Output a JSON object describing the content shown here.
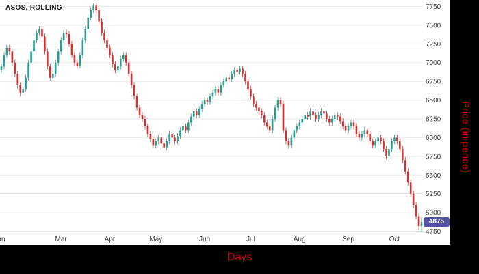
{
  "title": {
    "annotation": "ASOS, ROLLING"
  },
  "axes": {
    "x_label": "Days",
    "y_label": "Price (in pence)",
    "label_color": "#cc0000",
    "tick_color": "#444444",
    "grid_color": "#e8e8e8"
  },
  "price_badge": {
    "value": "4875",
    "color": "#5352a3"
  },
  "chart_data": {
    "type": "candlestick",
    "title": "ASOS, ROLLING",
    "xlabel": "Days",
    "ylabel": "Price (in pence)",
    "ylim": [
      4700,
      7800
    ],
    "y_ticks": [
      4750,
      5000,
      5250,
      5500,
      5750,
      6000,
      6250,
      6500,
      6750,
      7000,
      7250,
      7500,
      7750
    ],
    "x_ticks": [
      {
        "label": "an",
        "index": 0
      },
      {
        "label": "Mar",
        "index": 22
      },
      {
        "label": "Apr",
        "index": 40
      },
      {
        "label": "May",
        "index": 57
      },
      {
        "label": "Jun",
        "index": 75
      },
      {
        "label": "Jul",
        "index": 92
      },
      {
        "label": "Aug",
        "index": 110
      },
      {
        "label": "Sep",
        "index": 128
      },
      {
        "label": "Oct",
        "index": 145
      }
    ],
    "colors": {
      "up": "#2a9d8f",
      "down": "#d62f2f"
    },
    "last_price": 4875,
    "candles": [
      [
        6900,
        6990,
        6860,
        6950
      ],
      [
        6950,
        7140,
        6910,
        7100
      ],
      [
        7100,
        7240,
        7060,
        7200
      ],
      [
        7200,
        7240,
        7110,
        7150
      ],
      [
        7150,
        7190,
        6960,
        7000
      ],
      [
        7000,
        7040,
        6810,
        6850
      ],
      [
        6850,
        6890,
        6660,
        6700
      ],
      [
        6700,
        6740,
        6550,
        6600
      ],
      [
        6600,
        6690,
        6560,
        6650
      ],
      [
        6650,
        6840,
        6610,
        6800
      ],
      [
        6800,
        7040,
        6760,
        7000
      ],
      [
        7000,
        7190,
        6960,
        7150
      ],
      [
        7150,
        7340,
        7110,
        7300
      ],
      [
        7300,
        7440,
        7260,
        7400
      ],
      [
        7400,
        7490,
        7360,
        7450
      ],
      [
        7450,
        7490,
        7310,
        7350
      ],
      [
        7350,
        7390,
        7110,
        7150
      ],
      [
        7150,
        7190,
        6910,
        6950
      ],
      [
        6950,
        6990,
        6760,
        6800
      ],
      [
        6800,
        6890,
        6760,
        6850
      ],
      [
        6850,
        7040,
        6810,
        7000
      ],
      [
        7000,
        7190,
        6960,
        7150
      ],
      [
        7150,
        7340,
        7110,
        7300
      ],
      [
        7300,
        7440,
        7260,
        7400
      ],
      [
        7400,
        7440,
        7340,
        7380
      ],
      [
        7380,
        7420,
        7210,
        7250
      ],
      [
        7250,
        7290,
        7060,
        7100
      ],
      [
        7100,
        7140,
        6960,
        7000
      ],
      [
        7000,
        7040,
        6920,
        6960
      ],
      [
        6960,
        7140,
        6920,
        7100
      ],
      [
        7100,
        7340,
        7060,
        7300
      ],
      [
        7300,
        7490,
        7260,
        7450
      ],
      [
        7450,
        7640,
        7410,
        7600
      ],
      [
        7600,
        7740,
        7560,
        7700
      ],
      [
        7700,
        7790,
        7660,
        7760
      ],
      [
        7760,
        7790,
        7660,
        7700
      ],
      [
        7700,
        7740,
        7510,
        7550
      ],
      [
        7550,
        7590,
        7360,
        7400
      ],
      [
        7400,
        7440,
        7260,
        7300
      ],
      [
        7300,
        7340,
        7160,
        7200
      ],
      [
        7200,
        7240,
        7060,
        7100
      ],
      [
        7100,
        7140,
        6940,
        6980
      ],
      [
        6980,
        7020,
        6860,
        6900
      ],
      [
        6900,
        6990,
        6860,
        6950
      ],
      [
        6950,
        7090,
        6910,
        7050
      ],
      [
        7050,
        7140,
        7010,
        7100
      ],
      [
        7100,
        7140,
        6960,
        7000
      ],
      [
        7000,
        7040,
        6810,
        6850
      ],
      [
        6850,
        6890,
        6660,
        6700
      ],
      [
        6700,
        6740,
        6510,
        6550
      ],
      [
        6550,
        6590,
        6360,
        6400
      ],
      [
        6400,
        6440,
        6260,
        6300
      ],
      [
        6300,
        6340,
        6210,
        6250
      ],
      [
        6250,
        6290,
        6110,
        6150
      ],
      [
        6150,
        6190,
        6010,
        6050
      ],
      [
        6050,
        6090,
        5940,
        5980
      ],
      [
        5980,
        6020,
        5860,
        5900
      ],
      [
        5900,
        5990,
        5860,
        5950
      ],
      [
        5950,
        6040,
        5910,
        6000
      ],
      [
        6000,
        6040,
        5880,
        5920
      ],
      [
        5920,
        5960,
        5830,
        5870
      ],
      [
        5870,
        5990,
        5830,
        5950
      ],
      [
        5950,
        6090,
        5910,
        6050
      ],
      [
        6050,
        6090,
        5960,
        6000
      ],
      [
        6000,
        6040,
        5910,
        5950
      ],
      [
        5950,
        6060,
        5910,
        6020
      ],
      [
        6020,
        6140,
        5980,
        6100
      ],
      [
        6100,
        6190,
        6060,
        6150
      ],
      [
        6150,
        6190,
        6060,
        6100
      ],
      [
        6100,
        6240,
        6060,
        6200
      ],
      [
        6200,
        6320,
        6160,
        6280
      ],
      [
        6280,
        6390,
        6240,
        6350
      ],
      [
        6350,
        6390,
        6260,
        6300
      ],
      [
        6300,
        6420,
        6260,
        6380
      ],
      [
        6380,
        6490,
        6340,
        6450
      ],
      [
        6450,
        6540,
        6410,
        6500
      ],
      [
        6500,
        6540,
        6440,
        6480
      ],
      [
        6480,
        6590,
        6440,
        6550
      ],
      [
        6550,
        6640,
        6510,
        6600
      ],
      [
        6600,
        6690,
        6560,
        6650
      ],
      [
        6650,
        6690,
        6560,
        6600
      ],
      [
        6600,
        6740,
        6560,
        6700
      ],
      [
        6700,
        6790,
        6660,
        6750
      ],
      [
        6750,
        6840,
        6710,
        6800
      ],
      [
        6800,
        6840,
        6740,
        6780
      ],
      [
        6780,
        6890,
        6740,
        6850
      ],
      [
        6850,
        6940,
        6810,
        6900
      ],
      [
        6900,
        6940,
        6840,
        6880
      ],
      [
        6880,
        6960,
        6840,
        6920
      ],
      [
        6920,
        6960,
        6810,
        6850
      ],
      [
        6850,
        6890,
        6710,
        6750
      ],
      [
        6750,
        6790,
        6610,
        6650
      ],
      [
        6650,
        6690,
        6510,
        6550
      ],
      [
        6550,
        6590,
        6410,
        6450
      ],
      [
        6450,
        6490,
        6360,
        6400
      ],
      [
        6400,
        6440,
        6310,
        6350
      ],
      [
        6350,
        6390,
        6260,
        6300
      ],
      [
        6300,
        6340,
        6160,
        6200
      ],
      [
        6200,
        6240,
        6110,
        6150
      ],
      [
        6150,
        6190,
        6060,
        6100
      ],
      [
        6100,
        6290,
        6060,
        6250
      ],
      [
        6250,
        6440,
        6210,
        6400
      ],
      [
        6400,
        6540,
        6360,
        6500
      ],
      [
        6500,
        6540,
        6410,
        6450
      ],
      [
        6450,
        6490,
        6060,
        6100
      ],
      [
        6100,
        6140,
        5910,
        5950
      ],
      [
        5950,
        5990,
        5850,
        5900
      ],
      [
        5900,
        6040,
        5860,
        6000
      ],
      [
        6000,
        6140,
        5960,
        6100
      ],
      [
        6100,
        6190,
        6060,
        6150
      ],
      [
        6150,
        6240,
        6110,
        6200
      ],
      [
        6200,
        6290,
        6160,
        6250
      ],
      [
        6250,
        6340,
        6210,
        6300
      ],
      [
        6300,
        6340,
        6240,
        6280
      ],
      [
        6280,
        6390,
        6240,
        6350
      ],
      [
        6350,
        6390,
        6260,
        6300
      ],
      [
        6300,
        6340,
        6210,
        6250
      ],
      [
        6250,
        6340,
        6210,
        6300
      ],
      [
        6300,
        6390,
        6260,
        6350
      ],
      [
        6350,
        6390,
        6280,
        6320
      ],
      [
        6320,
        6360,
        6210,
        6250
      ],
      [
        6250,
        6290,
        6160,
        6200
      ],
      [
        6200,
        6290,
        6160,
        6250
      ],
      [
        6250,
        6340,
        6210,
        6300
      ],
      [
        6300,
        6340,
        6240,
        6280
      ],
      [
        6280,
        6320,
        6180,
        6220
      ],
      [
        6220,
        6260,
        6110,
        6150
      ],
      [
        6150,
        6190,
        6060,
        6100
      ],
      [
        6100,
        6190,
        6060,
        6150
      ],
      [
        6150,
        6240,
        6110,
        6200
      ],
      [
        6200,
        6240,
        6110,
        6150
      ],
      [
        6150,
        6190,
        6010,
        6050
      ],
      [
        6050,
        6090,
        5960,
        6000
      ],
      [
        6000,
        6090,
        5960,
        6050
      ],
      [
        6050,
        6140,
        6010,
        6100
      ],
      [
        6100,
        6140,
        6010,
        6050
      ],
      [
        6050,
        6090,
        5910,
        5950
      ],
      [
        5950,
        5990,
        5860,
        5900
      ],
      [
        5900,
        5990,
        5860,
        5950
      ],
      [
        5950,
        6040,
        5910,
        6000
      ],
      [
        6000,
        6040,
        5910,
        5950
      ],
      [
        5950,
        5990,
        5810,
        5850
      ],
      [
        5850,
        5890,
        5710,
        5750
      ],
      [
        5750,
        5890,
        5710,
        5850
      ],
      [
        5850,
        5990,
        5810,
        5950
      ],
      [
        5950,
        6040,
        5910,
        6000
      ],
      [
        6000,
        6040,
        5910,
        5950
      ],
      [
        5950,
        5990,
        5810,
        5850
      ],
      [
        5850,
        5890,
        5660,
        5700
      ],
      [
        5700,
        5740,
        5510,
        5550
      ],
      [
        5550,
        5590,
        5360,
        5400
      ],
      [
        5400,
        5440,
        5210,
        5250
      ],
      [
        5250,
        5290,
        5060,
        5100
      ],
      [
        5100,
        5140,
        4910,
        4950
      ],
      [
        4950,
        4990,
        4770,
        4820
      ],
      [
        4820,
        4940,
        4750,
        4875
      ]
    ]
  }
}
